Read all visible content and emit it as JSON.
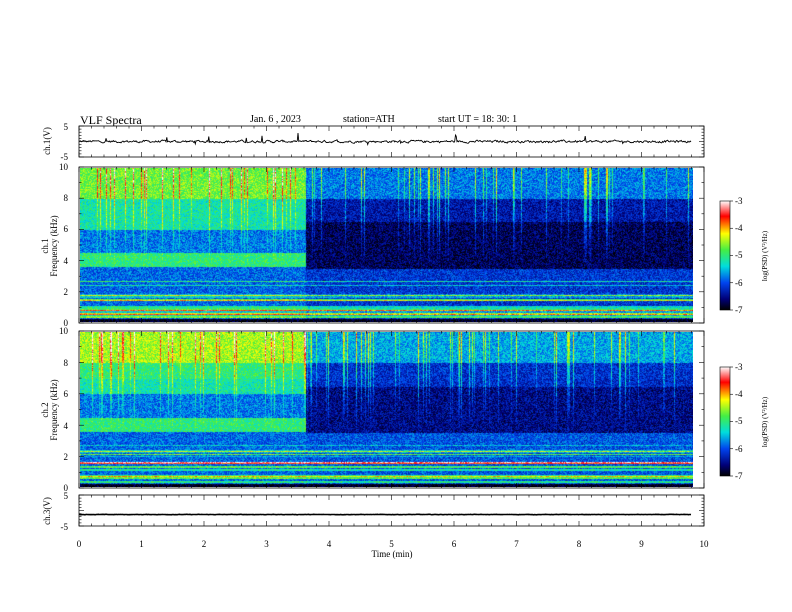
{
  "header": {
    "title": "VLF  Spectra",
    "date": "Jan. 6  , 2023",
    "station": "station=ATH",
    "start_ut": "start  UT  =    18: 30: 1"
  },
  "chart_data": [
    {
      "type": "line",
      "ylabel": "ch.1(V)",
      "ylim": [
        -5,
        5
      ],
      "yticks": [
        "5",
        "-5"
      ],
      "xlim": [
        0,
        10
      ],
      "approx_level": 0,
      "approx_noise": 0.6
    },
    {
      "type": "heatmap",
      "ylabel_1": "ch.1",
      "ylabel_2": "Frequency  (kHz)",
      "ylim": [
        0,
        10
      ],
      "yticks": [
        "0",
        "2",
        "4",
        "6",
        "8",
        "10"
      ],
      "xlim": [
        0,
        9.8
      ],
      "regime_change_min": 3.6,
      "colorbar": {
        "label": "log(PSD) (V²/Hz)",
        "range": [
          -7,
          -3
        ],
        "ticks": [
          "-3",
          "-4",
          "-5",
          "-6",
          "-7"
        ]
      }
    },
    {
      "type": "heatmap",
      "ylabel_1": "ch.2",
      "ylabel_2": "Frequency  (kHz)",
      "ylim": [
        0,
        10
      ],
      "yticks": [
        "0",
        "2",
        "4",
        "6",
        "8",
        "10"
      ],
      "xlim": [
        0,
        9.8
      ],
      "regime_change_min": 3.6,
      "colorbar": {
        "label": "log(PSD) (V²/Hz)",
        "range": [
          -7,
          -3
        ],
        "ticks": [
          "-3",
          "-4",
          "-5",
          "-6",
          "-7"
        ]
      }
    },
    {
      "type": "line",
      "ylabel": "ch.3(V)",
      "ylim": [
        -5,
        5
      ],
      "yticks": [
        "5",
        "-5"
      ],
      "xlim": [
        0,
        10
      ],
      "approx_level": -1.3,
      "approx_noise": 0.1
    }
  ],
  "xaxis": {
    "label": "Time  (min)",
    "ticks": [
      "0",
      "1",
      "2",
      "3",
      "4",
      "5",
      "6",
      "7",
      "8",
      "9",
      "10"
    ],
    "range": [
      0,
      10
    ]
  },
  "colors": {
    "line": "#000000",
    "frame": "#000000"
  }
}
